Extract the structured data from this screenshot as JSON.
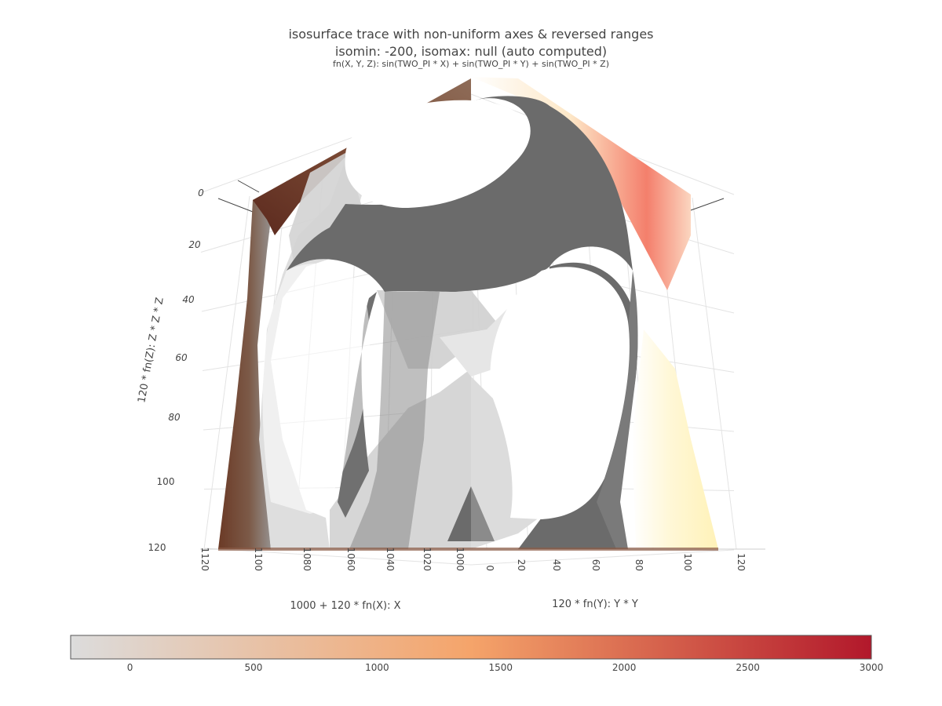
{
  "chart_data": {
    "type": "isosurface",
    "title": "isosurface trace with non-uniform axes & reversed ranges",
    "subtitle": "isomin: -200, isomax: null (auto computed)",
    "caption": "fn(X, Y, Z): sin(TWO_PI * X) + sin(TWO_PI * Y) + sin(TWO_PI * Z)",
    "xaxis": {
      "label": "1000 + 120 * fn(X): X",
      "ticks": [
        "1120",
        "1100",
        "1080",
        "1060",
        "1040",
        "1020",
        "1000"
      ],
      "range": [
        1120,
        1000
      ],
      "reversed": true
    },
    "yaxis": {
      "label": "120 * fn(Y): Y * Y",
      "ticks": [
        "0",
        "20",
        "40",
        "60",
        "80",
        "100",
        "120"
      ],
      "range": [
        0,
        120
      ]
    },
    "zaxis": {
      "label": "120 * fn(Z): Z * Z * Z",
      "ticks": [
        "0",
        "20",
        "40",
        "60",
        "80",
        "100",
        "120"
      ],
      "range": [
        0,
        120
      ],
      "reversed": true
    },
    "isomin": -200,
    "isomax": null,
    "colorbar": {
      "orientation": "horizontal",
      "ticks": [
        0,
        500,
        1000,
        1500,
        2000,
        2500,
        3000
      ],
      "range": [
        -240,
        3000
      ],
      "colors": [
        "#dcdcdc",
        "#f5a46a",
        "#b2182b"
      ]
    },
    "grid": true
  }
}
